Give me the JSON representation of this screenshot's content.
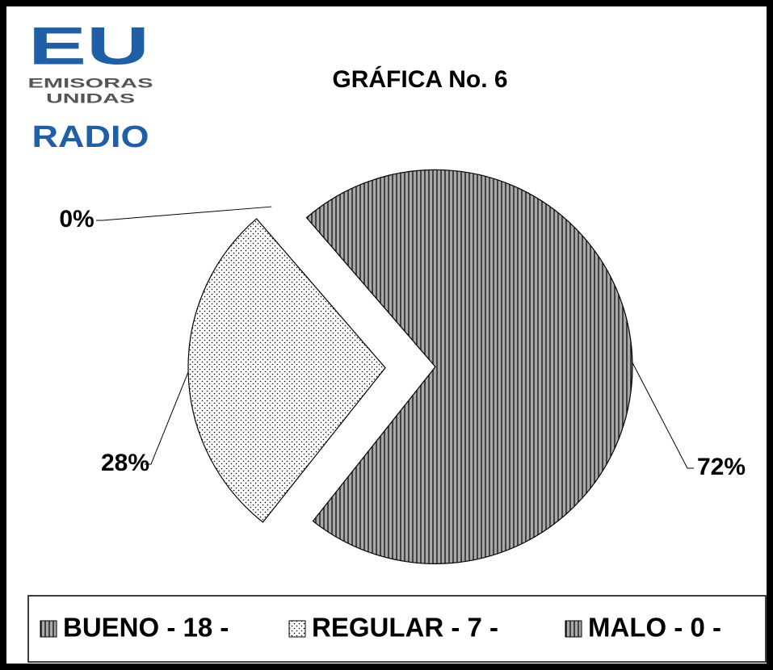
{
  "logo": {
    "mark": "EU",
    "line1": "EMISORAS",
    "line2": "UNIDAS",
    "brand": "RADIO"
  },
  "chart_data": {
    "type": "pie",
    "title": "GRÁFICA No. 6",
    "categories": [
      "BUENO - 18 -",
      "REGULAR - 7 -",
      "MALO - 0 -"
    ],
    "values": [
      72,
      28,
      0
    ],
    "value_labels": [
      "72%",
      "28%",
      "0%"
    ],
    "colors": [
      "#a8a8a8",
      "#ffffff",
      "#a8a8a8"
    ],
    "patterns": [
      "vertical-lines",
      "dots",
      "vertical-lines"
    ],
    "legend": "bottom"
  }
}
